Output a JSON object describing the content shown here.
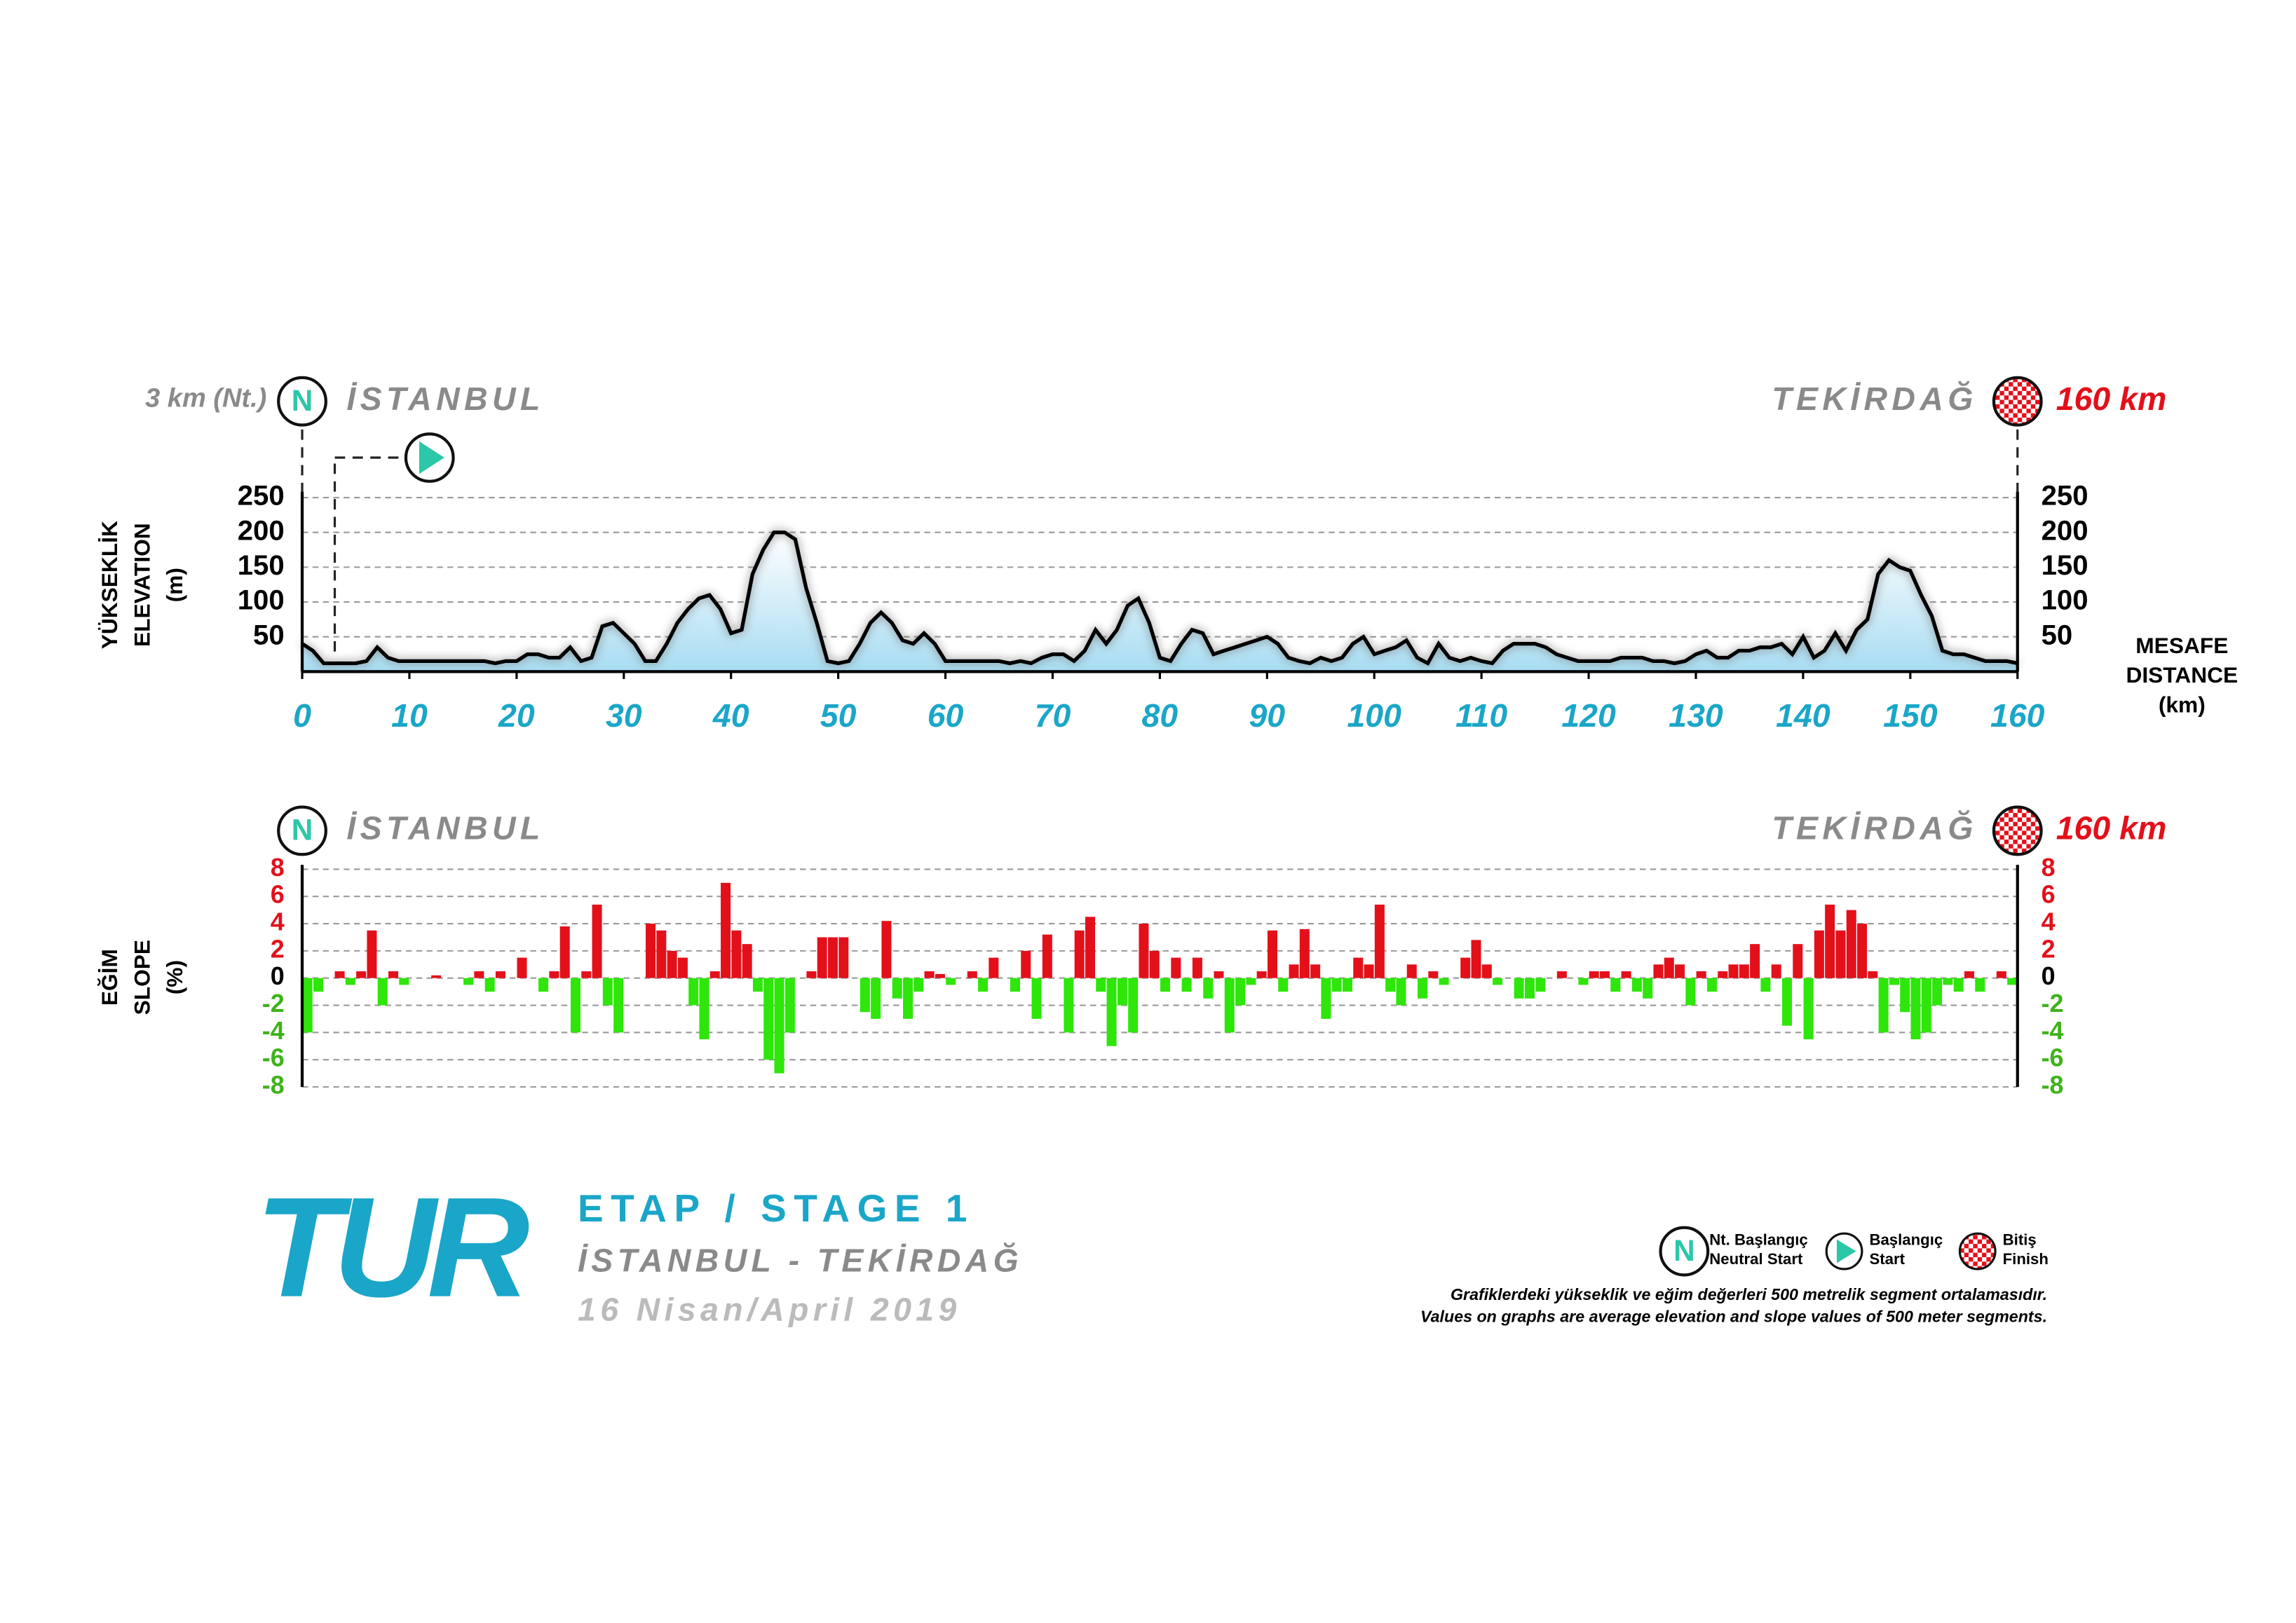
{
  "chart_data": [
    {
      "type": "area",
      "neutral_label": "3 km (Nt.)",
      "start_marker": "N",
      "start_city": "İSTANBUL",
      "finish_city": "TEKİRDAĞ",
      "finish_distance": "160 km",
      "ylabel": [
        "YÜKSEKLİK",
        "ELEVATION",
        "(m)"
      ],
      "xlabel": [
        "MESAFE",
        "DISTANCE",
        "(km)"
      ],
      "x": [
        0,
        1,
        2,
        3,
        4,
        5,
        6,
        7,
        8,
        9,
        10,
        11,
        12,
        13,
        14,
        15,
        16,
        17,
        18,
        19,
        20,
        21,
        22,
        23,
        24,
        25,
        26,
        27,
        28,
        29,
        30,
        31,
        32,
        33,
        34,
        35,
        36,
        37,
        38,
        39,
        40,
        41,
        42,
        43,
        44,
        45,
        46,
        47,
        48,
        49,
        50,
        51,
        52,
        53,
        54,
        55,
        56,
        57,
        58,
        59,
        60,
        61,
        62,
        63,
        64,
        65,
        66,
        67,
        68,
        69,
        70,
        71,
        72,
        73,
        74,
        75,
        76,
        77,
        78,
        79,
        80,
        81,
        82,
        83,
        84,
        85,
        86,
        87,
        88,
        89,
        90,
        91,
        92,
        93,
        94,
        95,
        96,
        97,
        98,
        99,
        100,
        101,
        102,
        103,
        104,
        105,
        106,
        107,
        108,
        109,
        110,
        111,
        112,
        113,
        114,
        115,
        116,
        117,
        118,
        119,
        120,
        121,
        122,
        123,
        124,
        125,
        126,
        127,
        128,
        129,
        130,
        131,
        132,
        133,
        134,
        135,
        136,
        137,
        138,
        139,
        140,
        141,
        142,
        143,
        144,
        145,
        146,
        147,
        148,
        149,
        150,
        151,
        152,
        153,
        154,
        155,
        156,
        157,
        158,
        159,
        160
      ],
      "values": [
        40,
        30,
        12,
        12,
        12,
        12,
        15,
        35,
        20,
        15,
        15,
        15,
        15,
        15,
        15,
        15,
        15,
        15,
        12,
        15,
        15,
        25,
        25,
        20,
        20,
        35,
        15,
        20,
        65,
        70,
        55,
        40,
        15,
        15,
        40,
        70,
        90,
        105,
        110,
        90,
        55,
        60,
        140,
        175,
        200,
        200,
        190,
        120,
        70,
        15,
        12,
        15,
        40,
        70,
        85,
        70,
        45,
        40,
        55,
        40,
        15,
        15,
        15,
        15,
        15,
        15,
        12,
        15,
        12,
        20,
        25,
        25,
        15,
        30,
        60,
        40,
        60,
        95,
        105,
        70,
        20,
        15,
        40,
        60,
        55,
        25,
        30,
        35,
        40,
        45,
        50,
        40,
        20,
        15,
        12,
        20,
        15,
        20,
        40,
        50,
        25,
        30,
        35,
        45,
        20,
        12,
        40,
        20,
        15,
        20,
        15,
        12,
        30,
        40,
        40,
        40,
        35,
        25,
        20,
        15,
        15,
        15,
        15,
        20,
        20,
        20,
        15,
        15,
        12,
        15,
        25,
        30,
        20,
        20,
        30,
        30,
        35,
        35,
        40,
        25,
        50,
        20,
        30,
        55,
        30,
        60,
        75,
        140,
        160,
        150,
        145,
        110,
        80,
        30,
        25,
        25,
        20,
        15,
        15,
        15,
        12
      ],
      "color": "#000000",
      "fill": "#bfe6f5",
      "xlim": [
        0,
        160
      ],
      "xticks": [
        0,
        10,
        20,
        30,
        40,
        50,
        60,
        70,
        80,
        90,
        100,
        110,
        120,
        130,
        140,
        150,
        160
      ],
      "ylim": [
        0,
        250
      ],
      "yticks": [
        50,
        100,
        150,
        200,
        250
      ],
      "grid": true
    },
    {
      "type": "bar",
      "start_marker": "N",
      "start_city": "İSTANBUL",
      "finish_city": "TEKİRDAĞ",
      "finish_distance": "160 km",
      "ylabel": [
        "EĞİM",
        "SLOPE",
        "(%)"
      ],
      "values": [
        -4,
        -1,
        0,
        0.5,
        -0.5,
        0.5,
        3.5,
        -2,
        0.5,
        -0.5,
        0,
        0,
        0.2,
        0,
        0,
        -0.5,
        0.5,
        -1,
        0.5,
        0,
        1.5,
        0,
        -1,
        0.5,
        3.8,
        -4,
        0.5,
        5.4,
        -2,
        -4,
        0,
        0,
        4,
        3.5,
        2,
        1.5,
        -2,
        -4.5,
        0.5,
        7,
        3.5,
        2.5,
        -1,
        -6,
        -7,
        -4,
        0,
        0.5,
        3,
        3,
        3,
        0,
        -2.5,
        -3,
        4.2,
        -1.5,
        -3,
        -1,
        0.5,
        0.3,
        -0.5,
        0,
        0.5,
        -1,
        1.5,
        0,
        -1,
        2,
        -3,
        3.2,
        0,
        -4,
        3.5,
        4.5,
        -1,
        -5,
        -2,
        -4,
        4,
        2,
        -1,
        1.5,
        -1,
        1.5,
        -1.5,
        0.5,
        -4,
        -2,
        -0.5,
        0.5,
        3.5,
        -1,
        1,
        3.6,
        1,
        -3,
        -1,
        -1,
        1.5,
        1,
        5.4,
        -1,
        -2,
        1,
        -1.5,
        0.5,
        -0.5,
        0,
        1.5,
        2.8,
        1,
        -0.5,
        0,
        -1.5,
        -1.5,
        -1,
        0,
        0.5,
        0,
        -0.5,
        0.5,
        0.5,
        -1,
        0.5,
        -1,
        -1.5,
        1,
        1.5,
        1,
        -2,
        0.5,
        -1,
        0.5,
        1,
        1,
        2.5,
        -1,
        1,
        -3.5,
        2.5,
        -4.5,
        3.5,
        5.4,
        3.5,
        5,
        4,
        0.5,
        -4,
        -0.5,
        -2.5,
        -4.5,
        -4,
        -2,
        -0.5,
        -1,
        0.5,
        -1,
        0,
        0.5,
        -0.5
      ],
      "positive_color": "#e3101a",
      "negative_color": "#2ee60a",
      "xlim": [
        0,
        160
      ],
      "ylim": [
        -8,
        8
      ],
      "yticks": [
        -8,
        -6,
        -4,
        -2,
        0,
        2,
        4,
        6,
        8
      ],
      "grid": true
    }
  ],
  "stage": {
    "logo": "TUR",
    "title": "ETAP / STAGE 1",
    "route": "İSTANBUL - TEKİRDAĞ",
    "date": "16 Nisan/April 2019"
  },
  "legend": [
    {
      "symbol": "N",
      "lines": [
        "Nt. Başlangıç",
        "Neutral Start"
      ]
    },
    {
      "lines": [
        "Başlangıç",
        "Start"
      ]
    },
    {
      "lines": [
        "Bitiş",
        "Finish"
      ]
    }
  ],
  "note": [
    "Grafiklerdeki yükseklik ve eğim değerleri 500 metrelik segment ortalamasıdır.",
    "Values on graphs are average elevation and slope values of 500 meter segments."
  ]
}
